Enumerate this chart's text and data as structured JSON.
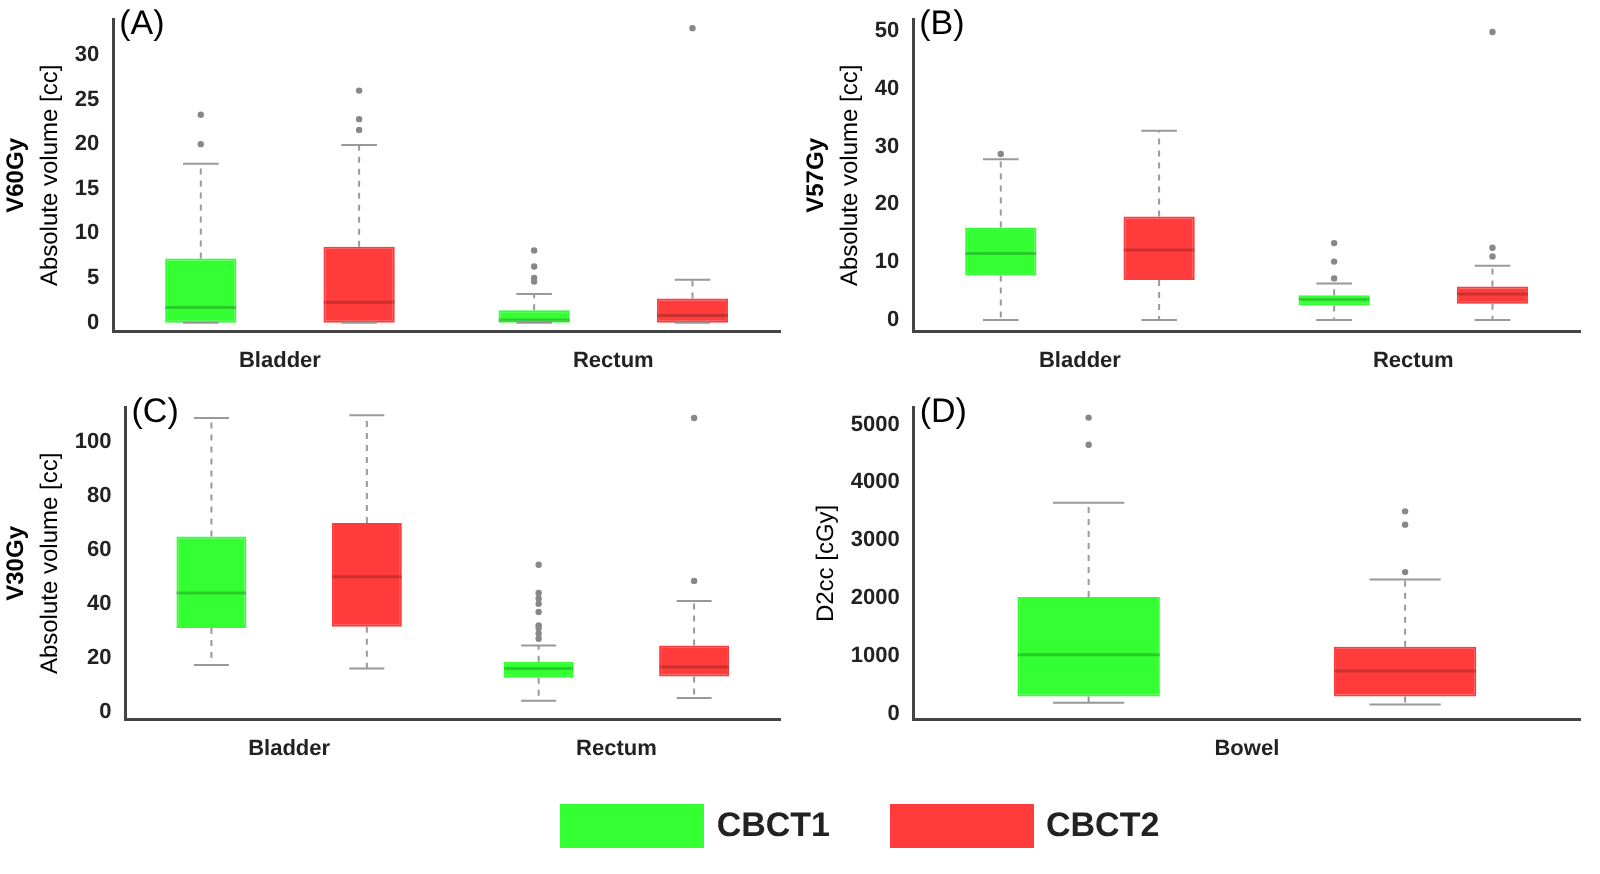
{
  "chart_data": [
    {
      "type": "box",
      "title": "V60Gy",
      "ylabel": "Absolute volume [cc]",
      "annotations": [
        "(A)"
      ],
      "categories": [
        "Bladder",
        "Rectum"
      ],
      "ylim": [
        -1,
        34
      ],
      "yticks": [
        0,
        5,
        10,
        15,
        20,
        25,
        30
      ],
      "legend": "bottom",
      "series": [
        {
          "name": "CBCT1",
          "color": "#33ff33",
          "boxes": [
            {
              "low": 0,
              "q1": 0,
              "median": 1.7,
              "q3": 7.2,
              "high": 17.8,
              "outliers": [
                20,
                23.3
              ]
            },
            {
              "low": 0,
              "q1": 0,
              "median": 0.3,
              "q3": 1.4,
              "high": 3.2,
              "outliers": [
                4.6,
                5.0,
                6.3,
                8.1
              ]
            }
          ]
        },
        {
          "name": "CBCT2",
          "color": "#ff3b3b",
          "boxes": [
            {
              "low": 0,
              "q1": 0,
              "median": 2.3,
              "q3": 8.5,
              "high": 19.9,
              "outliers": [
                21.6,
                22.8,
                26
              ]
            },
            {
              "low": 0,
              "q1": 0,
              "median": 0.8,
              "q3": 2.7,
              "high": 4.8,
              "outliers": [
                33
              ]
            }
          ]
        }
      ]
    },
    {
      "type": "box",
      "title": "V57Gy",
      "ylabel": "Absolute volume [cc]",
      "annotations": [
        "(B)"
      ],
      "categories": [
        "Bladder",
        "Rectum"
      ],
      "ylim": [
        -2,
        52
      ],
      "yticks": [
        0,
        10,
        20,
        30,
        40,
        50
      ],
      "series": [
        {
          "color": "#33ff33",
          "boxes": [
            {
              "low": 0,
              "q1": 7.7,
              "median": 11.5,
              "q3": 16,
              "high": 27.8,
              "outliers": [
                28.7
              ]
            },
            {
              "low": 0,
              "q1": 2.5,
              "median": 3.6,
              "q3": 4.3,
              "high": 6.3,
              "outliers": [
                7.2,
                10.1,
                13.3
              ]
            }
          ]
        },
        {
          "color": "#ff3b3b",
          "boxes": [
            {
              "low": 0,
              "q1": 6.9,
              "median": 12.1,
              "q3": 17.9,
              "high": 32.7
            },
            {
              "low": 0,
              "q1": 2.8,
              "median": 4.5,
              "q3": 5.8,
              "high": 9.4,
              "outliers": [
                11,
                12.5,
                49.8
              ]
            }
          ]
        }
      ]
    },
    {
      "type": "box",
      "title": "V30Gy",
      "ylabel": "Absolute volume [cc]",
      "annotations": [
        "(C)"
      ],
      "categories": [
        "Bladder",
        "Rectum"
      ],
      "ylim": [
        -3,
        113
      ],
      "yticks": [
        0,
        20,
        40,
        60,
        80,
        100
      ],
      "series": [
        {
          "color": "#33ff33",
          "boxes": [
            {
              "low": 17.3,
              "q1": 31,
              "median": 44,
              "q3": 65,
              "high": 109
            },
            {
              "low": 4,
              "q1": 12.5,
              "median": 16,
              "q3": 18.5,
              "high": 24.5,
              "outliers": [
                27,
                29,
                31,
                32,
                37,
                40,
                42,
                44,
                54.5
              ]
            }
          ]
        },
        {
          "color": "#ff3b3b",
          "boxes": [
            {
              "low": 16,
              "q1": 31.5,
              "median": 50,
              "q3": 70,
              "high": 110
            },
            {
              "low": 5,
              "q1": 13,
              "median": 16.5,
              "q3": 24.5,
              "high": 41,
              "outliers": [
                48.5,
                109
              ]
            }
          ]
        }
      ]
    },
    {
      "type": "box",
      "ylabel": "D2cc [cGy]",
      "annotations": [
        "(D)"
      ],
      "categories": [
        "Bowel"
      ],
      "ylim": [
        -100,
        5300
      ],
      "yticks": [
        0,
        1000,
        2000,
        3000,
        4000,
        5000
      ],
      "series": [
        {
          "color": "#33ff33",
          "boxes": [
            {
              "low": 190,
              "q1": 300,
              "median": 1020,
              "q3": 2020,
              "high": 3650,
              "outliers": [
                4650,
                5120
              ]
            }
          ]
        },
        {
          "color": "#ff3b3b",
          "boxes": [
            {
              "low": 160,
              "q1": 300,
              "median": 740,
              "q3": 1160,
              "high": 2320,
              "outliers": [
                2450,
                3270,
                3500
              ]
            }
          ]
        }
      ]
    }
  ]
}
